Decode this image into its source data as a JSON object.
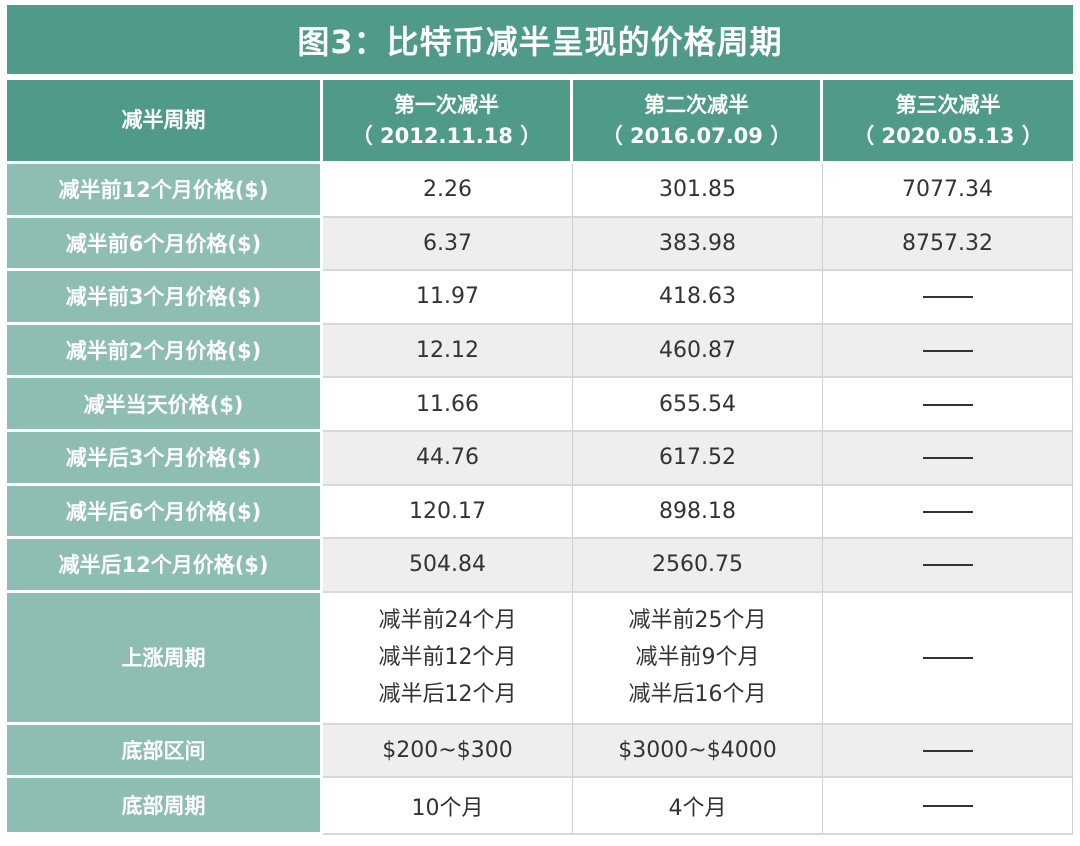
{
  "title": "图3：比特币减半呈现的价格周期",
  "header": {
    "col0": "减半周期",
    "col1": {
      "name": "第一次减半",
      "date": "（ 2012.11.18 ）"
    },
    "col2": {
      "name": "第二次减半",
      "date": "（ 2016.07.09 ）"
    },
    "col3": {
      "name": "第三次减半",
      "date": "（ 2020.05.13 ）"
    }
  },
  "rows": [
    {
      "label": "减半前12个月价格($)",
      "v1": "2.26",
      "v2": "301.85",
      "v3": "7077.34"
    },
    {
      "label": "减半前6个月价格($)",
      "v1": "6.37",
      "v2": "383.98",
      "v3": "8757.32"
    },
    {
      "label": "减半前3个月价格($)",
      "v1": "11.97",
      "v2": "418.63",
      "v3": "——"
    },
    {
      "label": "减半前2个月价格($)",
      "v1": "12.12",
      "v2": "460.87",
      "v3": "——"
    },
    {
      "label": "减半当天价格($)",
      "v1": "11.66",
      "v2": "655.54",
      "v3": "——"
    },
    {
      "label": "减半后3个月价格($)",
      "v1": "44.76",
      "v2": "617.52",
      "v3": "——"
    },
    {
      "label": "减半后6个月价格($)",
      "v1": "120.17",
      "v2": "898.18",
      "v3": "——"
    },
    {
      "label": "减半后12个月价格($)",
      "v1": "504.84",
      "v2": "2560.75",
      "v3": "——"
    },
    {
      "label": "上涨周期",
      "v1": [
        "减半前24个月",
        "减半前12个月",
        "减半后12个月"
      ],
      "v2": [
        "减半前25个月",
        "减半前9个月",
        "减半后16个月"
      ],
      "v3": "——"
    },
    {
      "label": "底部区间",
      "v1": "$200~$300",
      "v2": "$3000~$4000",
      "v3": "——"
    },
    {
      "label": "底部周期",
      "v1": "10个月",
      "v2": "4个月",
      "v3": "——"
    }
  ],
  "colors": {
    "header_bg": "#4f9a89",
    "label_bg": "#8dbdb3",
    "row_alt_bg": "#eeeeee",
    "text": "#333333"
  }
}
